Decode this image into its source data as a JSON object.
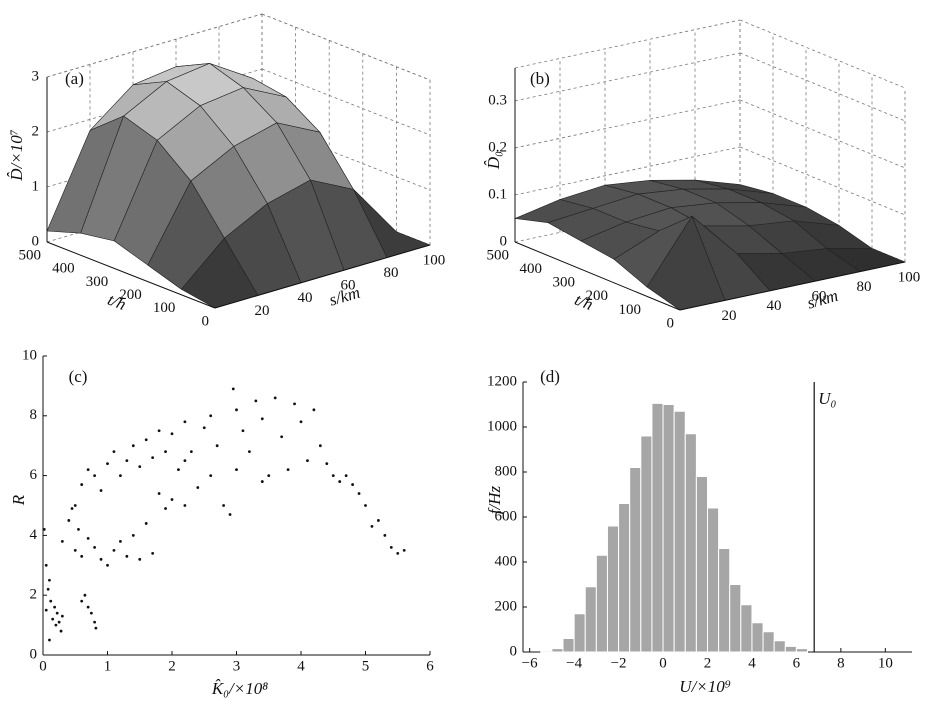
{
  "chart_data": [
    {
      "type": "surface",
      "label": "(a)",
      "xlabel": "s/km",
      "ylabel": "t/h",
      "zlabel": "D̂/×10⁷",
      "x": [
        0,
        20,
        40,
        60,
        80,
        100
      ],
      "y": [
        0,
        100,
        200,
        300,
        400,
        500
      ],
      "z": [
        [
          0,
          0,
          0,
          0,
          0,
          0
        ],
        [
          0.1,
          0.8,
          1.2,
          1.4,
          1.0,
          0
        ],
        [
          0.3,
          1.6,
          2.0,
          2.2,
          1.8,
          0.2
        ],
        [
          0.5,
          2.1,
          2.5,
          2.6,
          2.2,
          0.3
        ],
        [
          0.4,
          2.3,
          2.7,
          2.8,
          2.3,
          0.3
        ],
        [
          0.2,
          1.8,
          2.4,
          2.5,
          2.0,
          0.2
        ]
      ],
      "xlim": [
        0,
        100
      ],
      "ylim": [
        0,
        500
      ],
      "zlim": [
        0,
        3
      ],
      "xticks": [
        20,
        40,
        60,
        80,
        100
      ],
      "yticks": [
        0,
        100,
        200,
        300,
        400,
        500
      ],
      "zticks": [
        0,
        1,
        2,
        3
      ]
    },
    {
      "type": "surface",
      "label": "(b)",
      "xlabel": "s/km",
      "ylabel": "t/h",
      "zlabel": "D̂₀",
      "x": [
        0,
        20,
        40,
        60,
        80,
        100
      ],
      "y": [
        0,
        100,
        200,
        300,
        400,
        500
      ],
      "z": [
        [
          0,
          0,
          0,
          0,
          0,
          0
        ],
        [
          0.02,
          0.15,
          0.05,
          0.03,
          0.02,
          0
        ],
        [
          0.05,
          0.09,
          0.08,
          0.06,
          0.05,
          0.02
        ],
        [
          0.06,
          0.08,
          0.09,
          0.08,
          0.06,
          0.03
        ],
        [
          0.07,
          0.08,
          0.09,
          0.08,
          0.06,
          0.03
        ],
        [
          0.05,
          0.07,
          0.08,
          0.07,
          0.05,
          0.02
        ]
      ],
      "xlim": [
        0,
        100
      ],
      "ylim": [
        0,
        500
      ],
      "zlim": [
        0,
        0.37
      ],
      "xticks": [
        20,
        40,
        60,
        80,
        100
      ],
      "yticks": [
        0,
        100,
        200,
        300,
        400,
        500
      ],
      "zticks": [
        0,
        0.1,
        0.2,
        0.3
      ]
    },
    {
      "type": "scatter",
      "label": "(c)",
      "xlabel": "K̂₀/×10⁸",
      "ylabel": "R",
      "color": "#111111",
      "x": [
        0.05,
        0.08,
        0.1,
        0.12,
        0.15,
        0.18,
        0.2,
        0.22,
        0.25,
        0.28,
        0.3,
        0.05,
        0.02,
        0.1,
        0.6,
        0.65,
        0.7,
        0.75,
        0.8,
        0.82,
        0.3,
        0.4,
        0.45,
        0.5,
        0.55,
        0.6,
        0.7,
        0.8,
        0.9,
        1.0,
        1.1,
        1.2,
        1.3,
        1.4,
        1.5,
        1.6,
        1.7,
        0.5,
        0.6,
        0.7,
        0.8,
        0.9,
        1.0,
        1.1,
        1.2,
        1.3,
        1.4,
        1.5,
        1.6,
        1.7,
        1.8,
        1.9,
        2.0,
        2.1,
        2.2,
        1.8,
        1.9,
        2.0,
        2.2,
        2.4,
        2.3,
        2.5,
        2.6,
        2.7,
        2.8,
        2.9,
        2.95,
        3.0,
        3.1,
        3.2,
        3.3,
        3.4,
        3.5,
        3.6,
        3.7,
        3.8,
        3.9,
        4.0,
        4.1,
        4.2,
        4.3,
        4.4,
        4.5,
        4.6,
        4.7,
        4.8,
        4.9,
        5.0,
        5.1,
        5.2,
        5.3,
        5.4,
        5.5,
        5.6,
        2.6,
        3.0,
        3.4,
        2.2
      ],
      "values": [
        1.5,
        2.2,
        0.5,
        1.8,
        1.2,
        1.6,
        1.0,
        1.4,
        1.1,
        0.8,
        1.3,
        3.0,
        4.2,
        2.5,
        1.8,
        2.0,
        1.6,
        1.4,
        1.1,
        0.9,
        3.8,
        4.5,
        4.9,
        3.5,
        4.2,
        3.3,
        3.9,
        3.6,
        3.2,
        3.0,
        3.5,
        3.8,
        3.3,
        4.0,
        3.2,
        4.4,
        3.4,
        5.0,
        5.7,
        6.2,
        6.0,
        5.5,
        6.4,
        6.8,
        6.0,
        6.5,
        7.0,
        6.3,
        7.2,
        6.6,
        7.5,
        6.8,
        7.4,
        6.2,
        7.8,
        5.4,
        4.9,
        5.2,
        5.0,
        5.6,
        6.8,
        7.6,
        8.0,
        7.0,
        5.0,
        4.7,
        8.9,
        8.2,
        7.5,
        6.8,
        8.5,
        7.9,
        6.0,
        8.6,
        7.3,
        6.2,
        8.4,
        7.8,
        6.5,
        8.2,
        7.0,
        6.4,
        6.0,
        5.8,
        6.0,
        5.7,
        5.4,
        5.0,
        4.3,
        4.5,
        4.0,
        3.6,
        3.4,
        3.5,
        6.0,
        6.2,
        5.8,
        6.5
      ],
      "xlim": [
        0,
        6
      ],
      "ylim": [
        0,
        10
      ],
      "xticks": [
        0,
        1,
        2,
        3,
        4,
        5,
        6
      ],
      "yticks": [
        0,
        2,
        4,
        6,
        8,
        10
      ]
    },
    {
      "type": "histogram",
      "label": "(d)",
      "xlabel": "U/×10⁹",
      "ylabel": "f/Hz",
      "color": "#a6a6a6",
      "bins": [
        -5.5,
        -5,
        -4.5,
        -4,
        -3.5,
        -3,
        -2.5,
        -2,
        -1.5,
        -1,
        -0.5,
        0,
        0.5,
        1,
        1.5,
        2,
        2.5,
        3,
        3.5,
        4,
        4.5,
        5,
        5.5,
        6,
        6.5
      ],
      "values": [
        5,
        15,
        60,
        170,
        290,
        430,
        560,
        660,
        820,
        960,
        1105,
        1100,
        1070,
        970,
        780,
        640,
        460,
        300,
        210,
        130,
        90,
        50,
        25,
        15
      ],
      "vline": {
        "value": 6.8,
        "label": "U₀"
      },
      "xlim": [
        -6.3,
        11.2
      ],
      "ylim": [
        0,
        1200
      ],
      "xticks": [
        {
          "value": -6,
          "label": "−6"
        },
        {
          "value": -4,
          "label": "−4"
        },
        {
          "value": -2,
          "label": "−2"
        },
        0,
        2,
        4,
        6,
        8,
        10
      ],
      "yticks": [
        0,
        200,
        400,
        600,
        800,
        1000,
        1200
      ]
    }
  ]
}
